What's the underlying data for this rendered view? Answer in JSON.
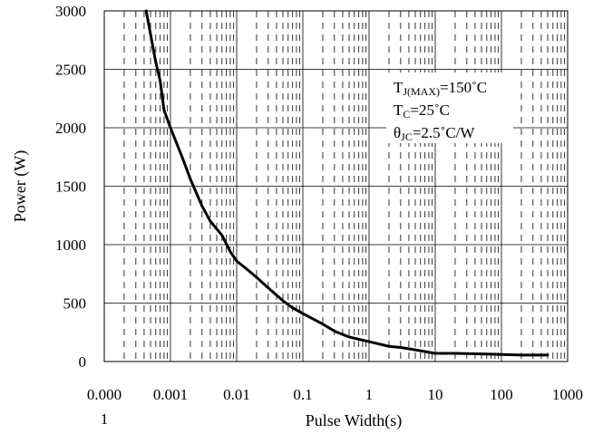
{
  "chart_data": {
    "type": "line",
    "x_scale": "log",
    "xlim": [
      0.0001,
      1000
    ],
    "ylim": [
      0,
      3000
    ],
    "xlabel": "Pulse Width(s)",
    "ylabel": "Power (W)",
    "title": "",
    "x_tick_values": [
      0.0001,
      0.001,
      0.01,
      0.1,
      1,
      10,
      100,
      1000
    ],
    "x_tick_labels": [
      "0.000\n1",
      "0.001",
      "0.01",
      "0.1",
      "1",
      "10",
      "100",
      "1000"
    ],
    "y_ticks": [
      0,
      500,
      1000,
      1500,
      2000,
      2500,
      3000
    ],
    "y_tick_labels": [
      "0",
      "500",
      "1000",
      "1500",
      "2000",
      "2500",
      "3000"
    ],
    "grid": "major horizontal solid, major vertical solid, minor vertical dashed",
    "series": [
      {
        "name": "",
        "color": "#000000",
        "points": [
          [
            0.00043,
            3000
          ],
          [
            0.0005,
            2800
          ],
          [
            0.0006,
            2560
          ],
          [
            0.0007,
            2400
          ],
          [
            0.0008,
            2150
          ],
          [
            0.001,
            2000
          ],
          [
            0.0015,
            1750
          ],
          [
            0.002,
            1560
          ],
          [
            0.003,
            1330
          ],
          [
            0.004,
            1200
          ],
          [
            0.006,
            1080
          ],
          [
            0.008,
            940
          ],
          [
            0.01,
            860
          ],
          [
            0.015,
            780
          ],
          [
            0.02,
            720
          ],
          [
            0.03,
            630
          ],
          [
            0.05,
            520
          ],
          [
            0.07,
            460
          ],
          [
            0.1,
            410
          ],
          [
            0.2,
            320
          ],
          [
            0.3,
            260
          ],
          [
            0.5,
            210
          ],
          [
            1,
            170
          ],
          [
            2,
            130
          ],
          [
            3,
            120
          ],
          [
            5,
            100
          ],
          [
            10,
            70
          ],
          [
            20,
            70
          ],
          [
            50,
            65
          ],
          [
            100,
            60
          ],
          [
            200,
            55
          ],
          [
            500,
            55
          ]
        ]
      }
    ],
    "annotations": [
      {
        "main": "T",
        "sub": "J(MAX)",
        "rest": "=150˚C"
      },
      {
        "main": "T",
        "sub": "C",
        "rest": "=25˚C"
      },
      {
        "main": "θ",
        "sub": "JC",
        "rest": "=2.5˚C/W"
      }
    ],
    "legend": "none"
  }
}
